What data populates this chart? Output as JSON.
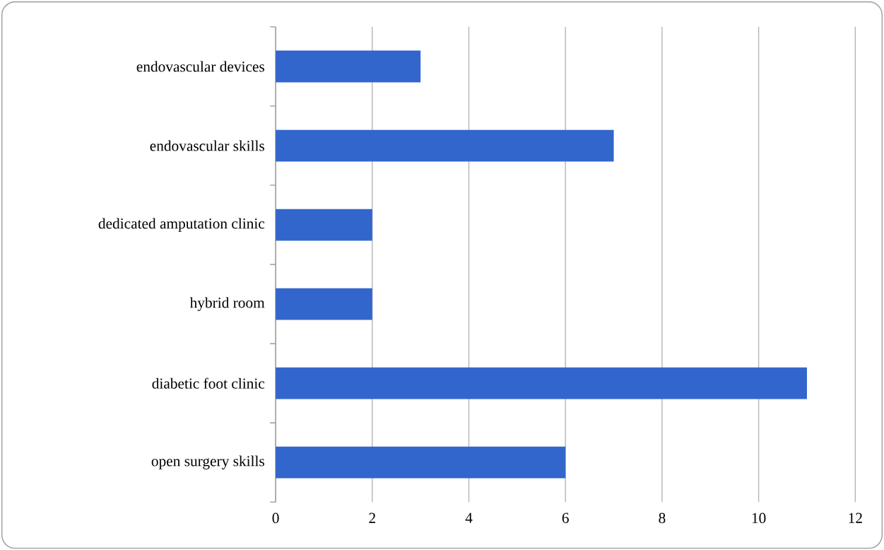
{
  "chart_data": {
    "type": "bar",
    "orientation": "horizontal",
    "categories": [
      "endovascular devices",
      "endovascular skills",
      "dedicated amputation clinic",
      "hybrid room",
      "diabetic foot clinic",
      "open surgery skills"
    ],
    "values": [
      3,
      7,
      2,
      2,
      11,
      6
    ],
    "color": "#3366cc",
    "xlim": [
      0,
      12
    ],
    "xticks": [
      0,
      2,
      4,
      6,
      8,
      10,
      12
    ],
    "grid": "x"
  }
}
